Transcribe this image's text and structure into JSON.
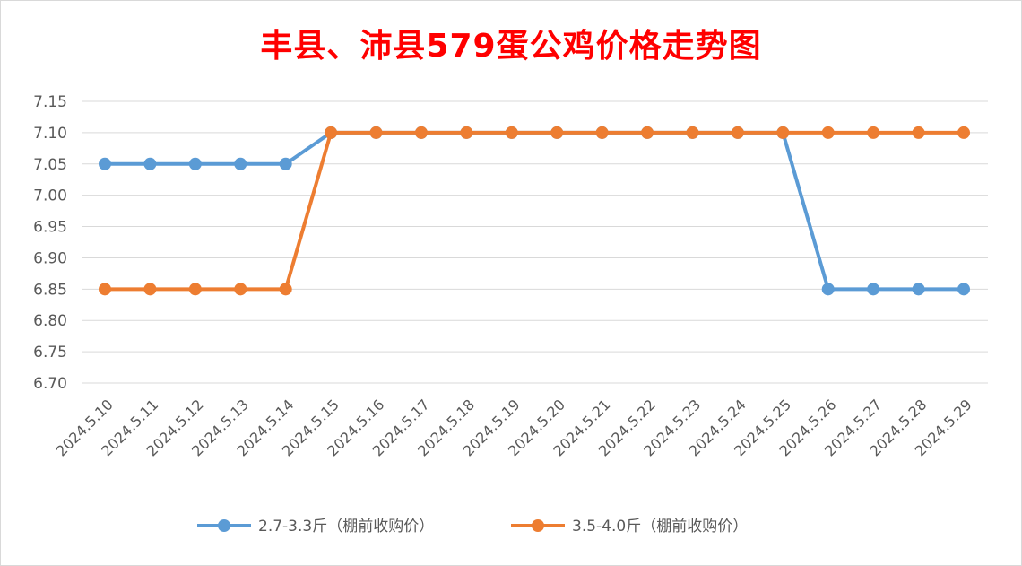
{
  "chart_data": {
    "type": "line",
    "title": "丰县、沛县579蛋公鸡价格走势图",
    "xlabel": "",
    "ylabel": "",
    "ylim": [
      6.7,
      7.15
    ],
    "ytick_step": 0.05,
    "grid": true,
    "legend_position": "bottom",
    "categories": [
      "2024.5.10",
      "2024.5.11",
      "2024.5.12",
      "2024.5.13",
      "2024.5.14",
      "2024.5.15",
      "2024.5.16",
      "2024.5.17",
      "2024.5.18",
      "2024.5.19",
      "2024.5.20",
      "2024.5.21",
      "2024.5.22",
      "2024.5.23",
      "2024.5.24",
      "2024.5.25",
      "2024.5.26",
      "2024.5.27",
      "2024.5.28",
      "2024.5.29"
    ],
    "series": [
      {
        "name": "2.7-3.3斤（棚前收购价）",
        "color": "#5b9bd5",
        "values": [
          7.05,
          7.05,
          7.05,
          7.05,
          7.05,
          7.1,
          7.1,
          7.1,
          7.1,
          7.1,
          7.1,
          7.1,
          7.1,
          7.1,
          7.1,
          7.1,
          6.85,
          6.85,
          6.85,
          6.85
        ]
      },
      {
        "name": "3.5-4.0斤（棚前收购价）",
        "color": "#ed7d31",
        "values": [
          6.85,
          6.85,
          6.85,
          6.85,
          6.85,
          7.1,
          7.1,
          7.1,
          7.1,
          7.1,
          7.1,
          7.1,
          7.1,
          7.1,
          7.1,
          7.1,
          7.1,
          7.1,
          7.1,
          7.1
        ]
      }
    ]
  }
}
